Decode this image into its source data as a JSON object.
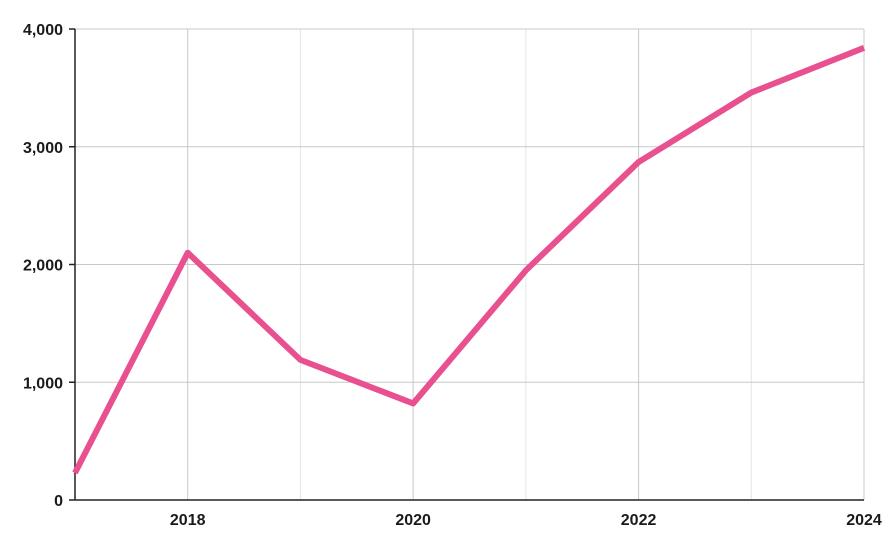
{
  "chart_data": {
    "type": "line",
    "title": "",
    "xlabel": "",
    "ylabel": "",
    "x": [
      2017,
      2018,
      2019,
      2020,
      2021,
      2022,
      2023,
      2024
    ],
    "series": [
      {
        "values": [
          230,
          2100,
          1190,
          820,
          1950,
          2870,
          3460,
          3840
        ]
      }
    ],
    "xlim": [
      2017,
      2024
    ],
    "ylim": [
      0,
      4000
    ],
    "x_ticks": [
      2018,
      2020,
      2022,
      2024
    ],
    "x_tick_labels": [
      "2018",
      "2020",
      "2022",
      "2024"
    ],
    "y_ticks": [
      0,
      1000,
      2000,
      3000,
      4000
    ],
    "y_tick_labels": [
      "0",
      "1,000",
      "2,000",
      "3,000",
      "4,000"
    ],
    "x_gridlines": [
      2018,
      2019,
      2020,
      2021,
      2022,
      2023,
      2024
    ],
    "grid": true,
    "legend": "none",
    "line_color": "#e8508f"
  }
}
